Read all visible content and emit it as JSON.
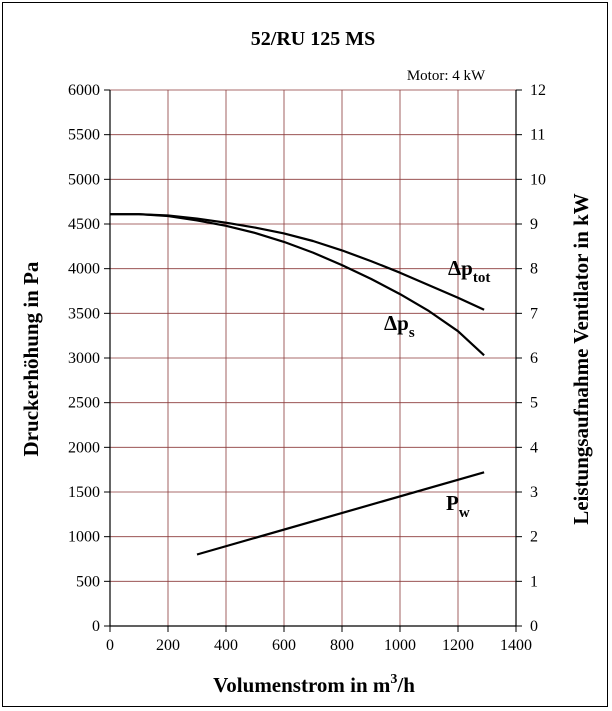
{
  "chart_data": {
    "type": "line",
    "title": "52/RU 125 MS",
    "subtitle": "Motor: 4 kW",
    "xlabel": {
      "base": "Volumenstrom in m",
      "sup": "3",
      "tail": "/h"
    },
    "ylabel_left": "Druckerhöhung in Pa",
    "ylabel_right": "Leistungsaufnahme Ventilator in kW",
    "xlim": [
      0,
      1400
    ],
    "ylim_left": [
      0,
      6000
    ],
    "ylim_right": [
      0,
      12
    ],
    "x_ticks": [
      0,
      200,
      400,
      600,
      800,
      1000,
      1200,
      1400
    ],
    "y_left_ticks": [
      0,
      500,
      1000,
      1500,
      2000,
      2500,
      3000,
      3500,
      4000,
      4500,
      5000,
      5500,
      6000
    ],
    "y_right_ticks": [
      0,
      1,
      2,
      3,
      4,
      5,
      6,
      7,
      8,
      9,
      10,
      11,
      12
    ],
    "grid": true,
    "grid_color": "#8b3a3a",
    "series": [
      {
        "name": {
          "base": "Δp",
          "sub": "tot"
        },
        "axis": "left",
        "x": [
          0,
          100,
          200,
          300,
          400,
          500,
          600,
          700,
          800,
          900,
          1000,
          1100,
          1200,
          1290
        ],
        "y": [
          4610,
          4610,
          4595,
          4560,
          4515,
          4460,
          4395,
          4310,
          4205,
          4085,
          3955,
          3815,
          3675,
          3540
        ]
      },
      {
        "name": {
          "base": "Δp",
          "sub": "s"
        },
        "axis": "left",
        "x": [
          0,
          100,
          200,
          300,
          400,
          500,
          600,
          700,
          800,
          900,
          1000,
          1100,
          1200,
          1290
        ],
        "y": [
          4610,
          4610,
          4590,
          4540,
          4480,
          4400,
          4300,
          4180,
          4040,
          3885,
          3715,
          3525,
          3300,
          3030
        ]
      },
      {
        "name": {
          "base": "P",
          "sub": "w"
        },
        "axis": "right",
        "x": [
          300,
          1290
        ],
        "y": [
          1.6,
          3.44
        ]
      }
    ]
  }
}
